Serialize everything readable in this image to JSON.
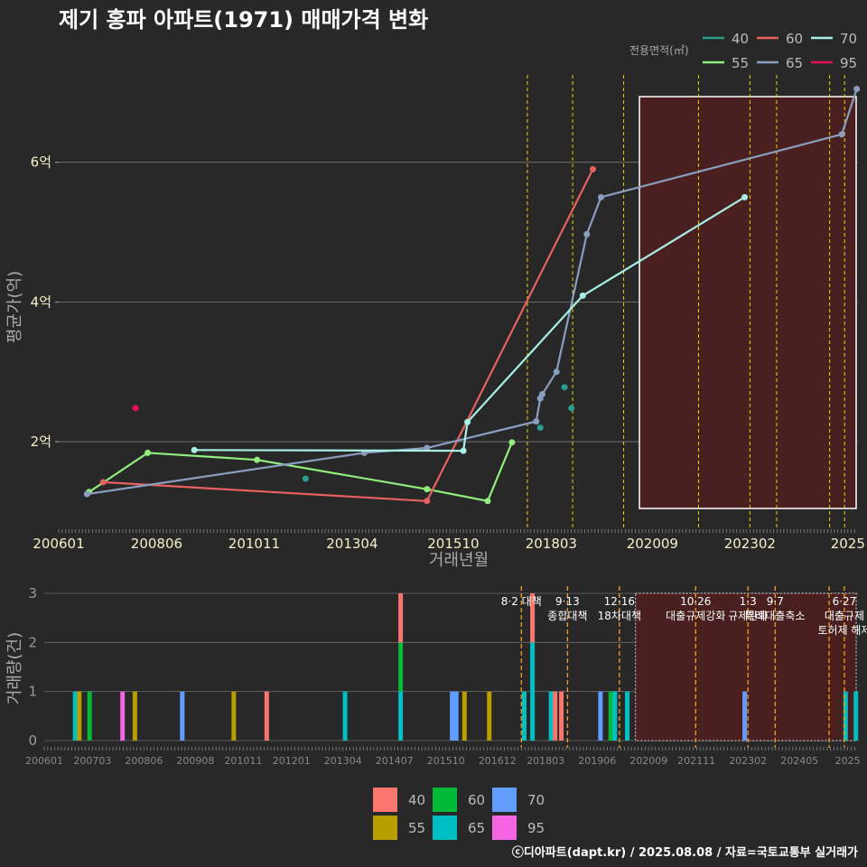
{
  "title": "제기 홍파 아파트(1971) 매매가격 변화",
  "footer": "ⓒ디아파트(dapt.kr) / 2025.08.08 / 자료=국토교통부 실거래가",
  "chart_data": [
    {
      "type": "line",
      "title": "제기 홍파 아파트(1971) 매매가격 변화",
      "xlabel": "거래년월",
      "ylabel": "평균가(억)",
      "xlim": [
        2006.0,
        2025.75
      ],
      "ylim": [
        0.85,
        7.25
      ],
      "yticks": [
        {
          "v": 2,
          "label": "2억"
        },
        {
          "v": 4,
          "label": "4억"
        },
        {
          "v": 6,
          "label": "6억"
        }
      ],
      "xticks": [
        {
          "v": 2006.0,
          "label": "200601"
        },
        {
          "v": 2008.42,
          "label": "200806"
        },
        {
          "v": 2010.83,
          "label": "201011"
        },
        {
          "v": 2013.25,
          "label": "201304"
        },
        {
          "v": 2015.75,
          "label": "201510"
        },
        {
          "v": 2018.17,
          "label": "201803"
        },
        {
          "v": 2020.67,
          "label": "202009"
        },
        {
          "v": 2023.08,
          "label": "202302"
        },
        {
          "v": 2025.5,
          "label": "2025"
        }
      ],
      "legend_title": "전용면적(㎡)",
      "series": [
        {
          "name": "40",
          "color": "#2a9d8f",
          "line": false,
          "x": [
            2012.1,
            2017.9,
            2018.5,
            2018.67
          ],
          "y": [
            1.47,
            2.2,
            2.78,
            2.48
          ]
        },
        {
          "name": "55",
          "color": "#90ee7e",
          "line": true,
          "x": [
            2006.75,
            2008.2,
            2010.9,
            2015.1,
            2016.6,
            2017.2
          ],
          "y": [
            1.28,
            1.84,
            1.74,
            1.32,
            1.15,
            1.99
          ]
        },
        {
          "name": "60",
          "color": "#e8605f",
          "line": true,
          "x": [
            2007.1,
            2015.1,
            2019.2
          ],
          "y": [
            1.42,
            1.15,
            5.9
          ]
        },
        {
          "name": "65",
          "color": "#8a9ec0",
          "line": true,
          "x": [
            2006.7,
            2013.55,
            2015.1,
            2017.8,
            2017.9,
            2017.95,
            2018.3,
            2019.05,
            2019.4,
            2025.35,
            2025.72
          ],
          "y": [
            1.25,
            1.84,
            1.91,
            2.29,
            2.62,
            2.68,
            3.0,
            4.97,
            5.5,
            6.4,
            7.05
          ]
        },
        {
          "name": "70",
          "color": "#a8f0e6",
          "line": true,
          "x": [
            2009.35,
            2016.0,
            2016.1,
            2018.95,
            2022.95
          ],
          "y": [
            1.88,
            1.87,
            2.28,
            4.09,
            5.5
          ]
        },
        {
          "name": "95",
          "color": "#e8105a",
          "line": false,
          "x": [
            2007.9
          ],
          "y": [
            2.48
          ]
        }
      ],
      "policy_lines": [
        2017.58,
        2018.7,
        2019.96,
        2021.81,
        2023.08,
        2023.74,
        2025.05,
        2025.42
      ],
      "highlight_x": [
        2020.35,
        2025.75
      ]
    },
    {
      "type": "bar",
      "title": "거래량",
      "xlabel": "",
      "ylabel": "거래량(건)",
      "ylim": [
        0,
        3
      ],
      "yticks": [
        {
          "v": 0,
          "label": "0"
        },
        {
          "v": 1,
          "label": "1"
        },
        {
          "v": 2,
          "label": "2"
        },
        {
          "v": 3,
          "label": "3"
        }
      ],
      "xticks": [
        {
          "v": 2006.0,
          "label": "200601"
        },
        {
          "v": 2007.17,
          "label": "200703"
        },
        {
          "v": 2008.42,
          "label": "200806"
        },
        {
          "v": 2009.67,
          "label": "200908"
        },
        {
          "v": 2010.83,
          "label": "201011"
        },
        {
          "v": 2012.0,
          "label": "201201"
        },
        {
          "v": 2013.25,
          "label": "201304"
        },
        {
          "v": 2014.5,
          "label": "201407"
        },
        {
          "v": 2015.75,
          "label": "201510"
        },
        {
          "v": 2017.0,
          "label": "201612"
        },
        {
          "v": 2018.17,
          "label": "201803"
        },
        {
          "v": 2019.42,
          "label": "201906"
        },
        {
          "v": 2020.67,
          "label": "202009"
        },
        {
          "v": 2021.83,
          "label": "202111"
        },
        {
          "v": 2023.08,
          "label": "202302"
        },
        {
          "v": 2024.33,
          "label": "202405"
        },
        {
          "v": 2025.5,
          "label": "2025"
        }
      ],
      "legend": [
        {
          "name": "40",
          "color": "#f8766d"
        },
        {
          "name": "55",
          "color": "#b79f00"
        },
        {
          "name": "60",
          "color": "#00ba38"
        },
        {
          "name": "65",
          "color": "#00bfc4"
        },
        {
          "name": "70",
          "color": "#619cff"
        },
        {
          "name": "95",
          "color": "#f564e3"
        }
      ],
      "bars": [
        {
          "x": 2006.75,
          "stack": [
            {
              "s": "65",
              "v": 1
            }
          ]
        },
        {
          "x": 2006.85,
          "stack": [
            {
              "s": "55",
              "v": 1
            }
          ]
        },
        {
          "x": 2007.1,
          "stack": [
            {
              "s": "60",
              "v": 1
            }
          ]
        },
        {
          "x": 2007.9,
          "stack": [
            {
              "s": "95",
              "v": 1
            }
          ]
        },
        {
          "x": 2008.2,
          "stack": [
            {
              "s": "55",
              "v": 1
            }
          ]
        },
        {
          "x": 2009.35,
          "stack": [
            {
              "s": "70",
              "v": 1
            }
          ]
        },
        {
          "x": 2010.6,
          "stack": [
            {
              "s": "55",
              "v": 1
            }
          ]
        },
        {
          "x": 2011.4,
          "stack": [
            {
              "s": "40",
              "v": 1
            }
          ]
        },
        {
          "x": 2013.3,
          "stack": [
            {
              "s": "65",
              "v": 1
            }
          ]
        },
        {
          "x": 2014.65,
          "stack": [
            {
              "s": "65",
              "v": 1
            },
            {
              "s": "60",
              "v": 1
            },
            {
              "s": "40",
              "v": 1
            }
          ]
        },
        {
          "x": 2015.9,
          "stack": [
            {
              "s": "70",
              "v": 1
            }
          ]
        },
        {
          "x": 2016.0,
          "stack": [
            {
              "s": "70",
              "v": 1
            }
          ]
        },
        {
          "x": 2016.2,
          "stack": [
            {
              "s": "55",
              "v": 1
            }
          ]
        },
        {
          "x": 2016.8,
          "stack": [
            {
              "s": "55",
              "v": 1
            }
          ]
        },
        {
          "x": 2017.65,
          "stack": [
            {
              "s": "65",
              "v": 1
            }
          ]
        },
        {
          "x": 2017.85,
          "stack": [
            {
              "s": "65",
              "v": 2
            },
            {
              "s": "40",
              "v": 1
            }
          ]
        },
        {
          "x": 2018.3,
          "stack": [
            {
              "s": "65",
              "v": 1
            }
          ]
        },
        {
          "x": 2018.4,
          "stack": [
            {
              "s": "40",
              "v": 1
            }
          ]
        },
        {
          "x": 2018.55,
          "stack": [
            {
              "s": "40",
              "v": 1
            }
          ]
        },
        {
          "x": 2019.5,
          "stack": [
            {
              "s": "70",
              "v": 1
            }
          ]
        },
        {
          "x": 2019.75,
          "stack": [
            {
              "s": "60",
              "v": 1
            }
          ]
        },
        {
          "x": 2019.85,
          "stack": [
            {
              "s": "65",
              "v": 1
            }
          ]
        },
        {
          "x": 2020.15,
          "stack": [
            {
              "s": "65",
              "v": 1
            }
          ]
        },
        {
          "x": 2023.0,
          "stack": [
            {
              "s": "70",
              "v": 1
            }
          ]
        },
        {
          "x": 2025.45,
          "stack": [
            {
              "s": "65",
              "v": 1
            }
          ]
        },
        {
          "x": 2025.7,
          "stack": [
            {
              "s": "65",
              "v": 1
            }
          ]
        }
      ],
      "events": [
        {
          "x": 2017.58,
          "lines": [
            "8·2 대책"
          ]
        },
        {
          "x": 2018.7,
          "lines": [
            "9·13",
            "종합대책"
          ]
        },
        {
          "x": 2019.96,
          "lines": [
            "12·16",
            "18차대책"
          ]
        },
        {
          "x": 2021.81,
          "lines": [
            "10·26",
            "대출규제강화"
          ]
        },
        {
          "x": 2023.08,
          "lines": [
            "1·3",
            "규제완화"
          ]
        },
        {
          "x": 2023.74,
          "lines": [
            "9·7",
            "특례대출축소"
          ]
        },
        {
          "x": 2025.42,
          "lines": [
            "6·27",
            "대출규제",
            "토허제 해제"
          ]
        }
      ],
      "highlight_x": [
        2020.35,
        2025.75
      ]
    }
  ]
}
